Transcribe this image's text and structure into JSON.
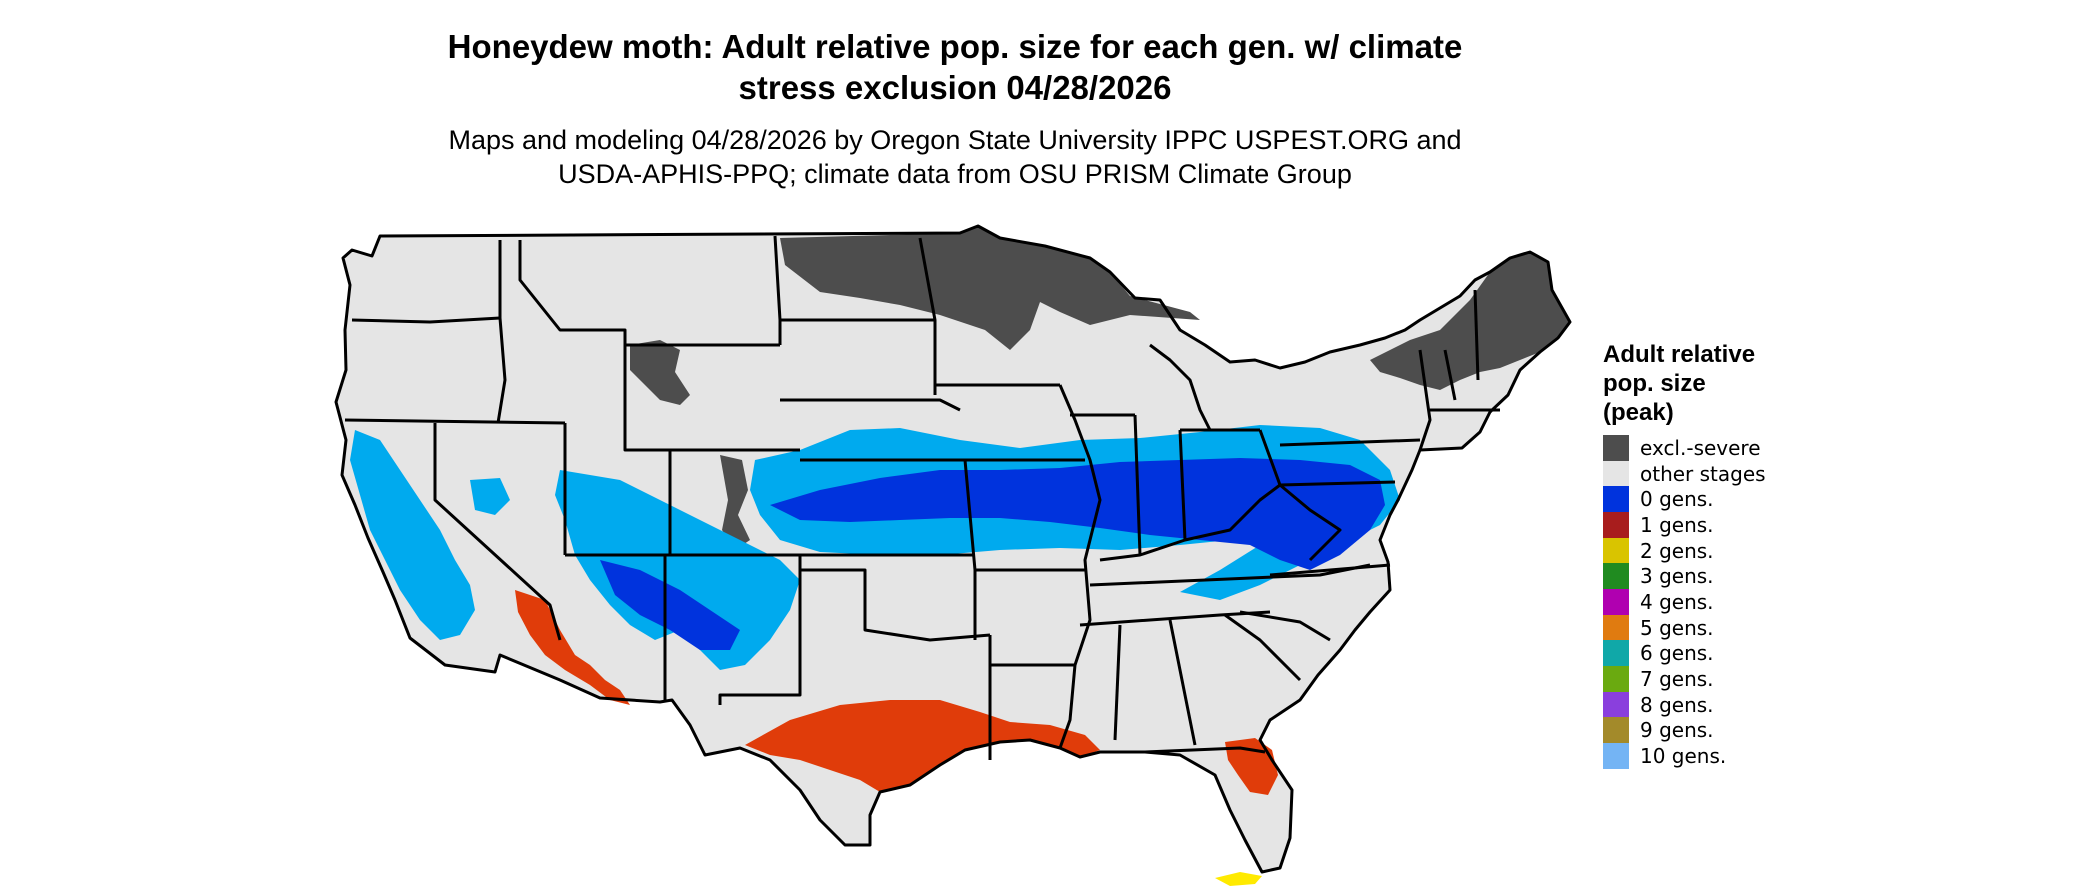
{
  "title": "Honeydew moth: Adult relative pop. size for each gen. w/ climate stress exclusion 04/28/2026",
  "title_lines": [
    "Honeydew moth: Adult relative pop. size for each gen. w/ climate",
    "stress exclusion 04/28/2026"
  ],
  "subtitle_lines": [
    "Maps and modeling 04/28/2026 by Oregon State University IPPC USPEST.ORG and",
    "USDA-APHIS-PPQ; climate data from OSU PRISM Climate Group"
  ],
  "colors": {
    "land": "#e5e5e5",
    "border": "#000000",
    "excl_severe": "#4d4d4d",
    "zero_gens": "#0033dd",
    "zero_gens_light": "#00aaee",
    "one_gen": "#e03c0a",
    "two_gens": "#ffea00"
  },
  "legend": {
    "title_lines": [
      "Adult relative",
      "pop. size",
      "(peak)"
    ],
    "items": [
      {
        "label": "excl.-severe",
        "color": "#4d4d4d"
      },
      {
        "label": "other stages",
        "color": "#e5e5e5"
      },
      {
        "label": "0 gens.",
        "color": "#0033dd"
      },
      {
        "label": "1 gens.",
        "color": "#a81d1d"
      },
      {
        "label": "2 gens.",
        "color": "#d9c400"
      },
      {
        "label": "3 gens.",
        "color": "#208b20"
      },
      {
        "label": "4 gens.",
        "color": "#b000b0"
      },
      {
        "label": "5 gens.",
        "color": "#e07b10"
      },
      {
        "label": "6 gens.",
        "color": "#10a8a8"
      },
      {
        "label": "7 gens.",
        "color": "#6aaa10"
      },
      {
        "label": "8 gens.",
        "color": "#8a3fdd"
      },
      {
        "label": "9 gens.",
        "color": "#a38a2a"
      },
      {
        "label": "10 gens.",
        "color": "#74b4f4"
      }
    ]
  }
}
